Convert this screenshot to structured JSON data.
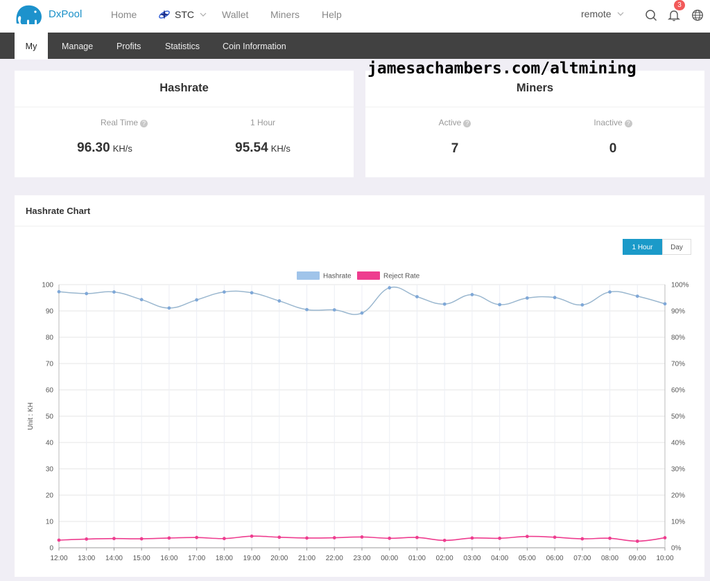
{
  "header": {
    "brand": "DxPool",
    "nav": [
      "Home",
      "Wallet",
      "Miners",
      "Help"
    ],
    "coin": "STC",
    "user": "remote",
    "notification_count": "3",
    "icons": [
      "logo-elephant-icon",
      "search-icon",
      "bell-icon",
      "globe-icon",
      "chevron-down-icon"
    ]
  },
  "subnav": {
    "tabs": [
      "My",
      "Manage",
      "Profits",
      "Statistics",
      "Coin Information"
    ],
    "active": "My"
  },
  "watermark": "jamesachambers.com/altmining",
  "hashrate_card": {
    "title": "Hashrate",
    "realtime_label": "Real Time",
    "realtime_value": "96.30",
    "realtime_unit": "KH/s",
    "hour_label": "1 Hour",
    "hour_value": "95.54",
    "hour_unit": "KH/s"
  },
  "miners_card": {
    "title": "Miners",
    "active_label": "Active",
    "active_value": "7",
    "inactive_label": "Inactive",
    "inactive_value": "0"
  },
  "chart_panel": {
    "title": "Hashrate Chart",
    "range_buttons": [
      "1 Hour",
      "Day"
    ],
    "selected_range": "1 Hour"
  },
  "colors": {
    "accent": "#1b9ac9",
    "hashrate": "#a0c4ea",
    "reject": "#ee3d8f"
  },
  "chart_data": {
    "type": "line",
    "categories": [
      "12:00",
      "13:00",
      "14:00",
      "15:00",
      "16:00",
      "17:00",
      "18:00",
      "19:00",
      "20:00",
      "21:00",
      "22:00",
      "23:00",
      "00:00",
      "01:00",
      "02:00",
      "03:00",
      "04:00",
      "05:00",
      "06:00",
      "07:00",
      "08:00",
      "09:00",
      "10:00"
    ],
    "series": [
      {
        "name": "Hashrate",
        "axis": "left",
        "values": [
          97.3,
          96.6,
          97.2,
          94.3,
          91.1,
          94.2,
          97.2,
          96.9,
          93.8,
          90.5,
          90.4,
          89.2,
          98.8,
          95.4,
          92.6,
          96.2,
          92.4,
          94.9,
          95.1,
          92.3,
          97.2,
          95.6,
          92.7
        ]
      },
      {
        "name": "Reject Rate",
        "axis": "right",
        "values": [
          2.9,
          3.3,
          3.5,
          3.4,
          3.7,
          3.9,
          3.5,
          4.4,
          4.0,
          3.7,
          3.8,
          4.1,
          3.6,
          3.9,
          2.8,
          3.7,
          3.6,
          4.3,
          4.0,
          3.4,
          3.6,
          2.5,
          3.8
        ]
      }
    ],
    "ylabel": "Unit : KH",
    "ylim": [
      0,
      100
    ],
    "y_ticks": [
      "0",
      "10",
      "20",
      "30",
      "40",
      "50",
      "60",
      "70",
      "80",
      "90",
      "100"
    ],
    "y2lim": [
      0,
      100
    ],
    "y2_ticks": [
      "0%",
      "10%",
      "20%",
      "30%",
      "40%",
      "50%",
      "60%",
      "70%",
      "80%",
      "90%",
      "100%"
    ],
    "legend": "top-center",
    "grid": true
  }
}
